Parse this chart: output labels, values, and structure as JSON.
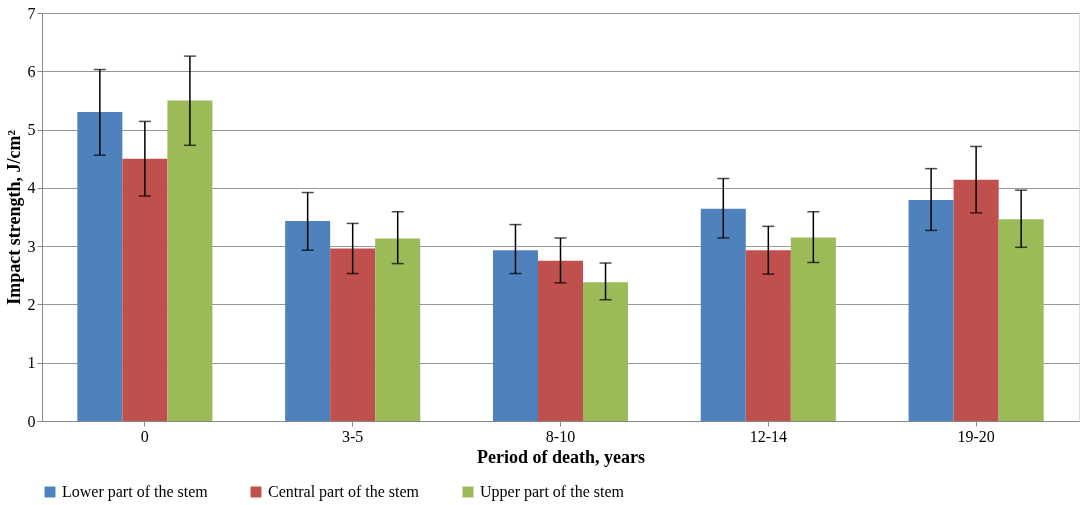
{
  "chart_data": {
    "type": "bar",
    "xlabel": "Period of death, years",
    "ylabel": "Impact strength, J/cm²",
    "categories": [
      "0",
      "3-5",
      "8-10",
      "12-14",
      "19-20"
    ],
    "series": [
      {
        "name": "Lower part of the stem",
        "color": "#4f81bd",
        "values": [
          5.3,
          3.43,
          2.93,
          3.64,
          3.79
        ],
        "errors": [
          [
            4.56,
            6.03
          ],
          [
            2.93,
            3.92
          ],
          [
            2.53,
            3.37
          ],
          [
            3.14,
            4.16
          ],
          [
            3.27,
            4.33
          ]
        ]
      },
      {
        "name": "Central part of the stem",
        "color": "#c0504d",
        "values": [
          4.5,
          2.96,
          2.75,
          2.93,
          4.14
        ],
        "errors": [
          [
            3.86,
            5.14
          ],
          [
            2.53,
            3.39
          ],
          [
            2.37,
            3.14
          ],
          [
            2.52,
            3.34
          ],
          [
            3.57,
            4.71
          ]
        ]
      },
      {
        "name": "Upper part of the stem",
        "color": "#9bbb59",
        "values": [
          5.5,
          3.13,
          2.38,
          3.15,
          3.46
        ],
        "errors": [
          [
            4.73,
            6.26
          ],
          [
            2.7,
            3.59
          ],
          [
            2.08,
            2.71
          ],
          [
            2.72,
            3.59
          ],
          [
            2.98,
            3.96
          ]
        ]
      }
    ],
    "ylim": [
      0,
      7
    ],
    "yticks": [
      0,
      1,
      2,
      3,
      4,
      5,
      6,
      7
    ],
    "grid": "y",
    "legend": "bottom"
  }
}
